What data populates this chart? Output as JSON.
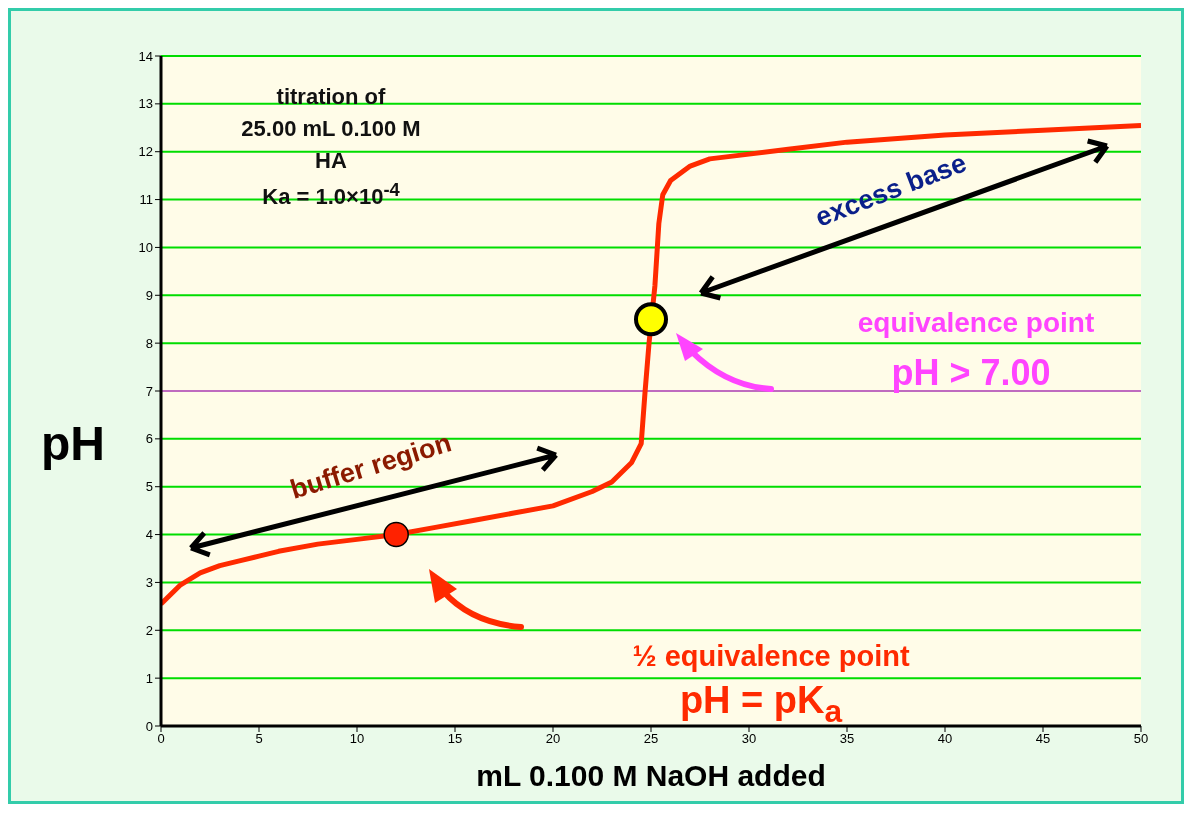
{
  "chart_data": {
    "type": "line",
    "xlabel": "mL 0.100 M NaOH added",
    "ylabel": "pH",
    "xlim": [
      0,
      50
    ],
    "xticks": [
      0,
      5,
      10,
      15,
      20,
      25,
      30,
      35,
      40,
      45,
      50
    ],
    "ylim": [
      0,
      14
    ],
    "yticks": [
      0,
      1,
      2,
      3,
      4,
      5,
      6,
      7,
      8,
      9,
      10,
      11,
      12,
      13,
      14
    ],
    "grid": "y",
    "line_style": "solid",
    "ref_lines": [
      {
        "axis": "y",
        "value": 7,
        "color": "#ff44ff"
      }
    ],
    "series": [
      {
        "type": "line",
        "marker": "none",
        "color": "#ff2a00",
        "x": [
          0,
          1,
          2,
          3,
          4,
          5,
          6,
          8,
          10,
          12,
          14,
          16,
          18,
          20,
          22,
          23,
          24,
          24.5,
          24.7,
          24.9,
          25.2,
          25.4,
          25.6,
          26,
          27,
          28,
          30,
          32,
          35,
          40,
          45,
          50
        ],
        "values": [
          2.55,
          2.95,
          3.2,
          3.35,
          3.45,
          3.55,
          3.65,
          3.8,
          3.9,
          4.0,
          4.15,
          4.3,
          4.45,
          4.6,
          4.9,
          5.1,
          5.5,
          5.9,
          7.0,
          8.0,
          9.2,
          10.5,
          11.1,
          11.4,
          11.7,
          11.85,
          11.95,
          12.05,
          12.2,
          12.35,
          12.45,
          12.55
        ]
      },
      {
        "type": "scatter",
        "marker": "circle",
        "x": [
          12,
          25
        ],
        "values": [
          4,
          8.5
        ],
        "colors": [
          "#ff2200",
          "#ffff00"
        ]
      }
    ],
    "annotations": [
      "titration of\n25.00 mL 0.100 M\nHA\nKa = 1.0×10$^{-4}$",
      "buffer region",
      "excess base",
      "equivalence point",
      "pH > 7.00",
      "½ equivalence point",
      "pH = pK$_{a}$"
    ]
  }
}
